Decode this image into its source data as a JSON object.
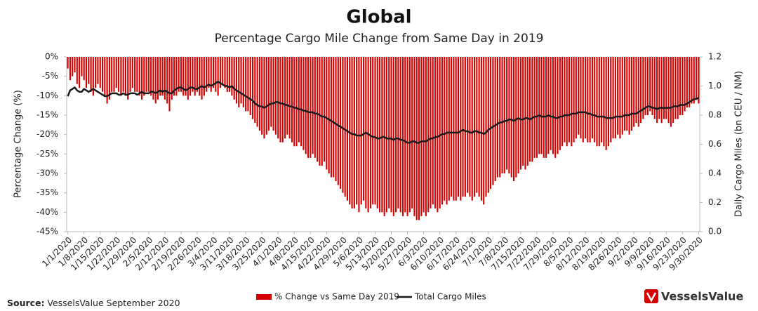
{
  "chart_data": {
    "type": "bar-line",
    "title": "Global",
    "subtitle": "Percentage Cargo Mile Change from Same Day in 2019",
    "y_label": "Percentage Change (%)",
    "y2_label": "Daily Cargo Miles (bn CEU / NM)",
    "categories": [
      "1/1/2020",
      null,
      null,
      null,
      null,
      null,
      null,
      "1/8/2020",
      null,
      null,
      null,
      null,
      null,
      null,
      "1/15/2020",
      null,
      null,
      null,
      null,
      null,
      null,
      "1/22/2020",
      null,
      null,
      null,
      null,
      null,
      null,
      "1/29/2020",
      null,
      null,
      null,
      null,
      null,
      null,
      "2/5/2020",
      null,
      null,
      null,
      null,
      null,
      null,
      "2/12/2020",
      null,
      null,
      null,
      null,
      null,
      null,
      "2/19/2020",
      null,
      null,
      null,
      null,
      null,
      null,
      "2/26/2020",
      null,
      null,
      null,
      null,
      null,
      null,
      "3/4/2020",
      null,
      null,
      null,
      null,
      null,
      null,
      "3/11/2020",
      null,
      null,
      null,
      null,
      null,
      null,
      "3/18/2020",
      null,
      null,
      null,
      null,
      null,
      null,
      "3/25/2020",
      null,
      null,
      null,
      null,
      null,
      null,
      "4/1/2020",
      null,
      null,
      null,
      null,
      null,
      null,
      "4/8/2020",
      null,
      null,
      null,
      null,
      null,
      null,
      "4/15/2020",
      null,
      null,
      null,
      null,
      null,
      null,
      "4/22/2020",
      null,
      null,
      null,
      null,
      null,
      null,
      "4/29/2020",
      null,
      null,
      null,
      null,
      null,
      null,
      "5/6/2020",
      null,
      null,
      null,
      null,
      null,
      null,
      "5/13/2020",
      null,
      null,
      null,
      null,
      null,
      null,
      "5/20/2020",
      null,
      null,
      null,
      null,
      null,
      null,
      "5/27/2020",
      null,
      null,
      null,
      null,
      null,
      null,
      "6/3/2020",
      null,
      null,
      null,
      null,
      null,
      null,
      "6/10/2020",
      null,
      null,
      null,
      null,
      null,
      null,
      "6/17/2020",
      null,
      null,
      null,
      null,
      null,
      null,
      "6/24/2020",
      null,
      null,
      null,
      null,
      null,
      null,
      "7/1/2020",
      null,
      null,
      null,
      null,
      null,
      null,
      "7/8/2020",
      null,
      null,
      null,
      null,
      null,
      null,
      "7/15/2020",
      null,
      null,
      null,
      null,
      null,
      null,
      "7/22/2020",
      null,
      null,
      null,
      null,
      null,
      null,
      "7/29/2020",
      null,
      null,
      null,
      null,
      null,
      null,
      "8/5/2020",
      null,
      null,
      null,
      null,
      null,
      null,
      "8/12/2020",
      null,
      null,
      null,
      null,
      null,
      null,
      "8/19/2020",
      null,
      null,
      null,
      null,
      null,
      null,
      "8/26/2020",
      null,
      null,
      null,
      null,
      null,
      null,
      "9/2/2020",
      null,
      null,
      null,
      null,
      null,
      null,
      "9/9/2020",
      null,
      null,
      null,
      null,
      null,
      null,
      "9/16/2020",
      null,
      null,
      null,
      null,
      null,
      null,
      "9/23/2020",
      null,
      null,
      null,
      null,
      null,
      null,
      "9/30/2020"
    ],
    "series": [
      {
        "name": "% Change vs Same Day 2019",
        "type": "bar",
        "color": "#d40000",
        "values": [
          -3,
          -6,
          -5,
          -4,
          -7,
          -8,
          -5,
          -6,
          -8,
          -7,
          -9,
          -10,
          -8,
          -7,
          -8,
          -9,
          -10,
          -12,
          -11,
          -9,
          -9,
          -8,
          -9,
          -10,
          -9,
          -10,
          -11,
          -9,
          -8,
          -9,
          -9,
          -10,
          -11,
          -10,
          -9,
          -9,
          -10,
          -11,
          -12,
          -11,
          -10,
          -10,
          -11,
          -12,
          -14,
          -11,
          -10,
          -10,
          -9,
          -9,
          -10,
          -10,
          -11,
          -10,
          -9,
          -10,
          -9,
          -10,
          -11,
          -10,
          -9,
          -8,
          -9,
          -8,
          -9,
          -10,
          -8,
          -7,
          -8,
          -9,
          -9,
          -10,
          -11,
          -12,
          -13,
          -12,
          -13,
          -14,
          -14,
          -15,
          -16,
          -17,
          -18,
          -19,
          -20,
          -21,
          -20,
          -19,
          -18,
          -19,
          -20,
          -21,
          -22,
          -22,
          -21,
          -20,
          -21,
          -22,
          -23,
          -23,
          -22,
          -23,
          -24,
          -25,
          -26,
          -26,
          -25,
          -26,
          -27,
          -28,
          -28,
          -27,
          -29,
          -30,
          -31,
          -31,
          -32,
          -33,
          -34,
          -35,
          -36,
          -37,
          -38,
          -39,
          -39,
          -38,
          -40,
          -38,
          -37,
          -39,
          -40,
          -39,
          -38,
          -38,
          -39,
          -40,
          -40,
          -41,
          -40,
          -39,
          -40,
          -41,
          -40,
          -39,
          -40,
          -41,
          -40,
          -41,
          -40,
          -39,
          -41,
          -42,
          -42,
          -41,
          -40,
          -41,
          -40,
          -39,
          -38,
          -39,
          -40,
          -39,
          -38,
          -37,
          -38,
          -37,
          -36,
          -37,
          -37,
          -36,
          -37,
          -36,
          -36,
          -35,
          -36,
          -37,
          -36,
          -35,
          -36,
          -37,
          -38,
          -36,
          -35,
          -34,
          -33,
          -32,
          -31,
          -31,
          -30,
          -30,
          -29,
          -30,
          -31,
          -32,
          -31,
          -30,
          -29,
          -28,
          -29,
          -28,
          -27,
          -27,
          -26,
          -26,
          -25,
          -25,
          -26,
          -26,
          -25,
          -24,
          -25,
          -26,
          -25,
          -24,
          -23,
          -22,
          -23,
          -22,
          -23,
          -22,
          -21,
          -20,
          -21,
          -22,
          -21,
          -22,
          -22,
          -21,
          -22,
          -23,
          -23,
          -22,
          -23,
          -24,
          -23,
          -22,
          -21,
          -21,
          -20,
          -21,
          -20,
          -19,
          -19,
          -20,
          -19,
          -18,
          -17,
          -18,
          -17,
          -16,
          -15,
          -15,
          -14,
          -15,
          -16,
          -17,
          -16,
          -17,
          -16,
          -16,
          -17,
          -18,
          -17,
          -16,
          -16,
          -15,
          -15,
          -14,
          -13,
          -13,
          -12,
          -12,
          -11,
          -12
        ]
      },
      {
        "name": "Total Cargo Miles",
        "type": "line",
        "axis": "y2",
        "color": "#1a1a1a",
        "values": [
          0.93,
          0.97,
          0.98,
          0.99,
          0.97,
          0.96,
          0.96,
          0.98,
          0.97,
          0.96,
          0.97,
          0.98,
          0.97,
          0.96,
          0.95,
          0.94,
          0.93,
          0.93,
          0.94,
          0.95,
          0.95,
          0.95,
          0.94,
          0.94,
          0.95,
          0.94,
          0.94,
          0.95,
          0.95,
          0.95,
          0.94,
          0.95,
          0.96,
          0.95,
          0.95,
          0.95,
          0.96,
          0.96,
          0.95,
          0.96,
          0.97,
          0.96,
          0.97,
          0.96,
          0.95,
          0.95,
          0.97,
          0.98,
          0.99,
          0.99,
          0.98,
          0.97,
          0.98,
          0.99,
          0.99,
          0.98,
          0.98,
          0.99,
          1.0,
          0.99,
          1.0,
          1.01,
          1.0,
          1.01,
          1.02,
          1.03,
          1.02,
          1.01,
          1.0,
          1.0,
          0.99,
          1.0,
          0.98,
          0.97,
          0.96,
          0.95,
          0.94,
          0.93,
          0.92,
          0.91,
          0.9,
          0.88,
          0.87,
          0.86,
          0.86,
          0.85,
          0.86,
          0.87,
          0.88,
          0.88,
          0.89,
          0.89,
          0.88,
          0.88,
          0.87,
          0.87,
          0.86,
          0.86,
          0.85,
          0.85,
          0.84,
          0.84,
          0.83,
          0.83,
          0.82,
          0.82,
          0.82,
          0.81,
          0.81,
          0.8,
          0.79,
          0.79,
          0.78,
          0.77,
          0.76,
          0.75,
          0.74,
          0.73,
          0.72,
          0.71,
          0.7,
          0.69,
          0.68,
          0.67,
          0.67,
          0.66,
          0.66,
          0.66,
          0.67,
          0.68,
          0.67,
          0.66,
          0.65,
          0.65,
          0.64,
          0.64,
          0.65,
          0.65,
          0.64,
          0.64,
          0.64,
          0.63,
          0.64,
          0.64,
          0.63,
          0.63,
          0.62,
          0.61,
          0.61,
          0.62,
          0.62,
          0.61,
          0.61,
          0.62,
          0.62,
          0.62,
          0.63,
          0.64,
          0.64,
          0.65,
          0.65,
          0.66,
          0.67,
          0.67,
          0.68,
          0.68,
          0.68,
          0.68,
          0.68,
          0.68,
          0.69,
          0.7,
          0.69,
          0.69,
          0.68,
          0.68,
          0.69,
          0.69,
          0.68,
          0.68,
          0.67,
          0.68,
          0.7,
          0.71,
          0.72,
          0.73,
          0.74,
          0.75,
          0.75,
          0.76,
          0.76,
          0.77,
          0.77,
          0.76,
          0.77,
          0.78,
          0.77,
          0.77,
          0.78,
          0.78,
          0.77,
          0.78,
          0.79,
          0.79,
          0.8,
          0.79,
          0.79,
          0.79,
          0.8,
          0.79,
          0.79,
          0.78,
          0.78,
          0.79,
          0.79,
          0.8,
          0.8,
          0.8,
          0.81,
          0.81,
          0.81,
          0.82,
          0.82,
          0.82,
          0.82,
          0.81,
          0.81,
          0.8,
          0.8,
          0.79,
          0.79,
          0.79,
          0.79,
          0.78,
          0.78,
          0.78,
          0.78,
          0.79,
          0.79,
          0.79,
          0.79,
          0.8,
          0.8,
          0.8,
          0.81,
          0.81,
          0.81,
          0.82,
          0.83,
          0.84,
          0.85,
          0.86,
          0.86,
          0.85,
          0.85,
          0.84,
          0.85,
          0.85,
          0.85,
          0.85,
          0.85,
          0.85,
          0.86,
          0.86,
          0.86,
          0.87,
          0.87,
          0.87,
          0.88,
          0.89,
          0.9,
          0.91,
          0.91,
          0.92
        ]
      }
    ],
    "ylim": [
      -45,
      0
    ],
    "yticks": [
      {
        "value": 0,
        "label": "0%"
      },
      {
        "value": -5,
        "label": "-5%"
      },
      {
        "value": -10,
        "label": "-10%"
      },
      {
        "value": -15,
        "label": "-15%"
      },
      {
        "value": -20,
        "label": "-20%"
      },
      {
        "value": -25,
        "label": "-25%"
      },
      {
        "value": -30,
        "label": "-30%"
      },
      {
        "value": -35,
        "label": "-35%"
      },
      {
        "value": -40,
        "label": "-40%"
      },
      {
        "value": -45,
        "label": "-45%"
      }
    ],
    "y2lim": [
      0,
      1.2
    ],
    "y2ticks": [
      {
        "value": 0,
        "label": "0.0"
      },
      0.2,
      0.4,
      0.6,
      0.8,
      {
        "value": 1,
        "label": "1.0"
      },
      1.2
    ],
    "grid": false,
    "legend": "bottom"
  },
  "source_label": "Source:",
  "source_text": "VesselsValue September 2020",
  "logo_text": "VesselsValue"
}
